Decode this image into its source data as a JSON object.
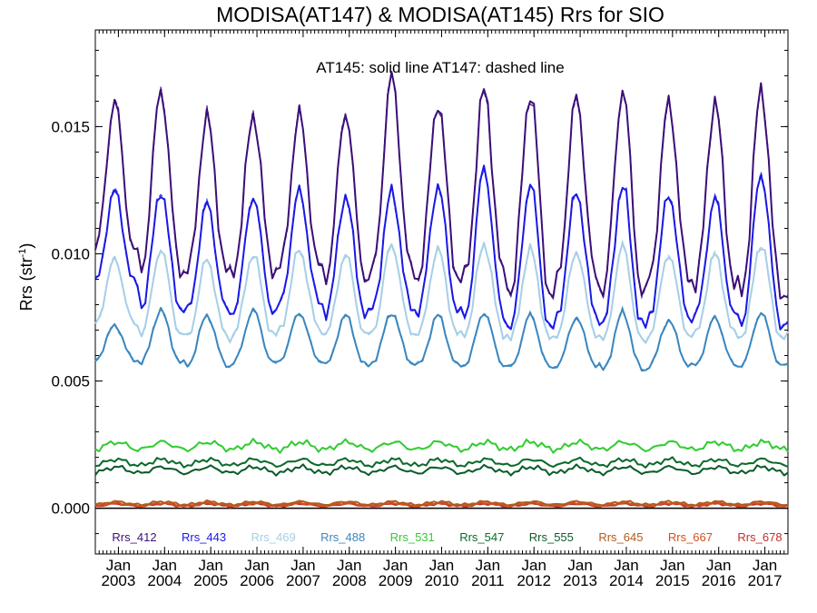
{
  "chart_data": {
    "type": "line",
    "title": "MODISA(AT147) & MODISA(AT145)  Rrs for SIO",
    "annotation": "AT145: solid line   AT147: dashed line",
    "ylabel_main": "Rrs (str",
    "ylabel_sup": "-1",
    "ylabel_end": ")",
    "xlim": [
      2002.5,
      2017.5
    ],
    "ylim": [
      -0.0018,
      0.0188
    ],
    "yticks": [
      0.0,
      0.005,
      0.01,
      0.015
    ],
    "ytick_labels": [
      "0.000",
      "0.005",
      "0.010",
      "0.015"
    ],
    "xtick_top_label": "Jan",
    "xticks": [
      {
        "year": "2003",
        "x": 2003.0
      },
      {
        "year": "2004",
        "x": 2004.0
      },
      {
        "year": "2005",
        "x": 2005.0
      },
      {
        "year": "2006",
        "x": 2006.0
      },
      {
        "year": "2007",
        "x": 2007.0
      },
      {
        "year": "2008",
        "x": 2008.0
      },
      {
        "year": "2009",
        "x": 2009.0
      },
      {
        "year": "2010",
        "x": 2010.0
      },
      {
        "year": "2011",
        "x": 2011.0
      },
      {
        "year": "2012",
        "x": 2012.0
      },
      {
        "year": "2013",
        "x": 2013.0
      },
      {
        "year": "2014",
        "x": 2014.0
      },
      {
        "year": "2015",
        "x": 2015.0
      },
      {
        "year": "2016",
        "x": 2016.0
      },
      {
        "year": "2017",
        "x": 2017.0
      }
    ],
    "zero_line": 0.0,
    "series": [
      {
        "name": "Rrs_412",
        "color": "#3c0f78",
        "peaks": [
          0.016,
          0.0165,
          0.0154,
          0.0155,
          0.0155,
          0.0156,
          0.017,
          0.016,
          0.0165,
          0.0164,
          0.0162,
          0.0165,
          0.016,
          0.016,
          0.0165
        ],
        "troughs": [
          0.01,
          0.0093,
          0.0092,
          0.0093,
          0.0094,
          0.009,
          0.0092,
          0.009,
          0.009,
          0.0083,
          0.0089,
          0.0084,
          0.009,
          0.0087,
          0.0084
        ]
      },
      {
        "name": "Rrs_443",
        "color": "#1a1ae6",
        "peaks": [
          0.0125,
          0.0125,
          0.012,
          0.0123,
          0.0125,
          0.0123,
          0.0125,
          0.0127,
          0.0134,
          0.0128,
          0.0125,
          0.0127,
          0.0124,
          0.0122,
          0.0132
        ],
        "troughs": [
          0.0088,
          0.0078,
          0.0077,
          0.0077,
          0.008,
          0.0076,
          0.0078,
          0.0077,
          0.0074,
          0.007,
          0.0075,
          0.0071,
          0.0075,
          0.0075,
          0.0072
        ]
      },
      {
        "name": "Rrs_469",
        "color": "#a6cfe6",
        "peaks": [
          0.0098,
          0.0102,
          0.0098,
          0.01,
          0.0102,
          0.01,
          0.0104,
          0.0102,
          0.0104,
          0.0102,
          0.0101,
          0.0103,
          0.01,
          0.01,
          0.0104
        ],
        "troughs": [
          0.0072,
          0.0068,
          0.0067,
          0.0068,
          0.007,
          0.0068,
          0.0069,
          0.0068,
          0.0068,
          0.0066,
          0.0068,
          0.0065,
          0.0068,
          0.0068,
          0.0067
        ]
      },
      {
        "name": "Rrs_488",
        "color": "#3a87c0",
        "peaks": [
          0.0072,
          0.0078,
          0.0076,
          0.0078,
          0.0077,
          0.0076,
          0.0077,
          0.0076,
          0.0077,
          0.0076,
          0.0075,
          0.0077,
          0.0074,
          0.0075,
          0.0077
        ],
        "troughs": [
          0.0058,
          0.0057,
          0.0056,
          0.0057,
          0.0058,
          0.0056,
          0.0057,
          0.0056,
          0.0056,
          0.0055,
          0.0056,
          0.0054,
          0.0056,
          0.0056,
          0.0056
        ]
      },
      {
        "name": "Rrs_531",
        "color": "#33cc33",
        "level": 0.00245,
        "amp": 0.00015
      },
      {
        "name": "Rrs_547",
        "color": "#0b6b2c",
        "level": 0.0018,
        "amp": 0.00012
      },
      {
        "name": "Rrs_555",
        "color": "#0b5c2a",
        "level": 0.0015,
        "amp": 0.00012
      },
      {
        "name": "Rrs_645",
        "color": "#b25a1e",
        "level": 0.0002,
        "amp": 6e-05
      },
      {
        "name": "Rrs_667",
        "color": "#d0531c",
        "level": 0.00015,
        "amp": 5e-05
      },
      {
        "name": "Rrs_678",
        "color": "#c0302a",
        "level": 0.00012,
        "amp": 5e-05
      }
    ]
  }
}
